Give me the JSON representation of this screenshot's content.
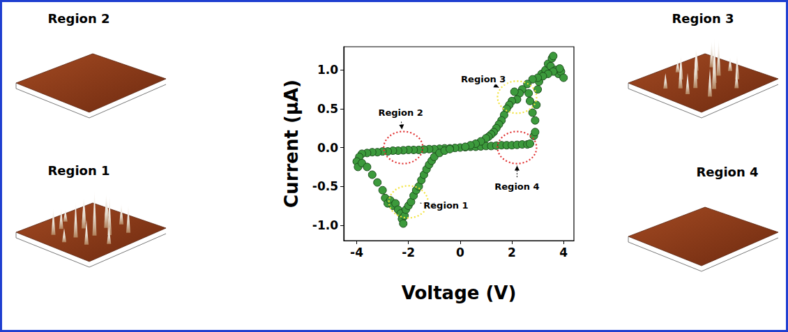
{
  "chart_data": {
    "type": "scatter",
    "x_label": "Voltage (V)",
    "y_label": "Current (μA)",
    "xlim": [
      -4.5,
      4.4
    ],
    "ylim": [
      -1.2,
      1.3
    ],
    "xticks": [
      -4,
      -2,
      0,
      2,
      4
    ],
    "yticks": [
      {
        "value": -1,
        "label": "-1.0"
      },
      {
        "value": -0.5,
        "label": "-0.5"
      },
      {
        "value": 0,
        "label": "0.0"
      },
      {
        "value": 0.5,
        "label": "0.5"
      },
      {
        "value": 1,
        "label": "1.0"
      }
    ],
    "grid": false,
    "marker": "circle",
    "color": "#3c9a3c",
    "x": [
      0,
      0.2,
      0.4,
      0.6,
      0.8,
      1.0,
      1.2,
      1.4,
      1.6,
      1.8,
      2.0,
      2.2,
      2.4,
      2.6,
      2.7,
      2.85,
      2.9,
      2.95,
      3.0,
      3.05,
      3.15,
      3.3,
      3.4,
      3.5,
      3.55,
      3.6,
      3.7,
      3.8,
      3.9,
      4.0,
      3.85,
      3.6,
      3.4,
      3.2,
      3.0,
      2.8,
      2.6,
      2.4,
      2.3,
      2.2,
      2.1,
      2.0,
      1.9,
      1.8,
      1.7,
      1.6,
      1.5,
      1.4,
      1.3,
      1.2,
      1.1,
      1.0,
      0.8,
      0.6,
      0.4,
      0.2,
      2.9,
      2.8,
      2.7,
      2.65,
      -0.2,
      -0.4,
      -0.6,
      -0.8,
      -1.0,
      -1.2,
      -1.4,
      -1.6,
      -1.8,
      -2.0,
      -2.2,
      -2.4,
      -2.6,
      -2.8,
      -3.0,
      -3.2,
      -3.4,
      -3.6,
      -3.8,
      -3.9,
      -4.0,
      -3.95,
      -3.8,
      -3.6,
      -3.4,
      -3.2,
      -3.0,
      -2.9,
      -2.8,
      -2.7,
      -2.6,
      -2.5,
      -2.4,
      -2.3,
      -2.25,
      -2.2,
      -2.15,
      -2.1,
      -2.0,
      -1.9,
      -1.8,
      -1.7,
      -1.6,
      -1.5,
      -1.4,
      -1.3,
      -1.2,
      -1.1,
      -1.0,
      -0.8,
      -0.6,
      -0.4
    ],
    "values": [
      0,
      0.005,
      0.01,
      0.01,
      0.015,
      0.02,
      0.02,
      0.025,
      0.03,
      0.03,
      0.03,
      0.035,
      0.04,
      0.04,
      0.05,
      0.15,
      0.35,
      0.55,
      0.75,
      0.85,
      0.95,
      1.0,
      1.08,
      1.05,
      1.15,
      1.18,
      1.0,
      0.95,
      0.98,
      0.9,
      1.02,
      0.98,
      0.95,
      0.92,
      0.9,
      0.88,
      0.82,
      0.75,
      0.7,
      0.62,
      0.72,
      0.6,
      0.55,
      0.5,
      0.42,
      0.35,
      0.3,
      0.25,
      0.2,
      0.17,
      0.14,
      0.12,
      0.08,
      0.05,
      0.03,
      0.01,
      0.2,
      0.45,
      0.6,
      0.7,
      -0.005,
      -0.01,
      -0.01,
      -0.015,
      -0.02,
      -0.02,
      -0.025,
      -0.03,
      -0.03,
      -0.03,
      -0.035,
      -0.04,
      -0.04,
      -0.05,
      -0.05,
      -0.06,
      -0.06,
      -0.07,
      -0.08,
      -0.12,
      -0.18,
      -0.25,
      -0.2,
      -0.25,
      -0.35,
      -0.45,
      -0.55,
      -0.65,
      -0.72,
      -0.68,
      -0.75,
      -0.72,
      -0.8,
      -0.85,
      -0.92,
      -0.98,
      -0.88,
      -0.8,
      -0.75,
      -0.7,
      -0.62,
      -0.55,
      -0.5,
      -0.42,
      -0.35,
      -0.28,
      -0.22,
      -0.17,
      -0.12,
      -0.07,
      -0.04,
      -0.02
    ],
    "annotations": [
      {
        "text": "Region 1",
        "x": -2.0,
        "y": -0.7,
        "label_x": -0.55,
        "label_y": -0.75,
        "color": "#f2e33a"
      },
      {
        "text": "Region 2",
        "x": -2.2,
        "y": 0.0,
        "label_x": -2.3,
        "label_y": 0.45,
        "color": "#e03030"
      },
      {
        "text": "Region 3",
        "x": 2.2,
        "y": 0.65,
        "label_x": 0.9,
        "label_y": 0.88,
        "color": "#f2e33a"
      },
      {
        "text": "Region 4",
        "x": 2.2,
        "y": 0.0,
        "label_x": 2.2,
        "label_y": -0.5,
        "color": "#e03030"
      }
    ]
  },
  "panels": [
    {
      "title": "Region 2",
      "spikes": false
    },
    {
      "title": "Region 1",
      "spikes": true
    },
    {
      "title": "Region 3",
      "spikes": true
    },
    {
      "title": "Region 4",
      "spikes": false
    }
  ]
}
